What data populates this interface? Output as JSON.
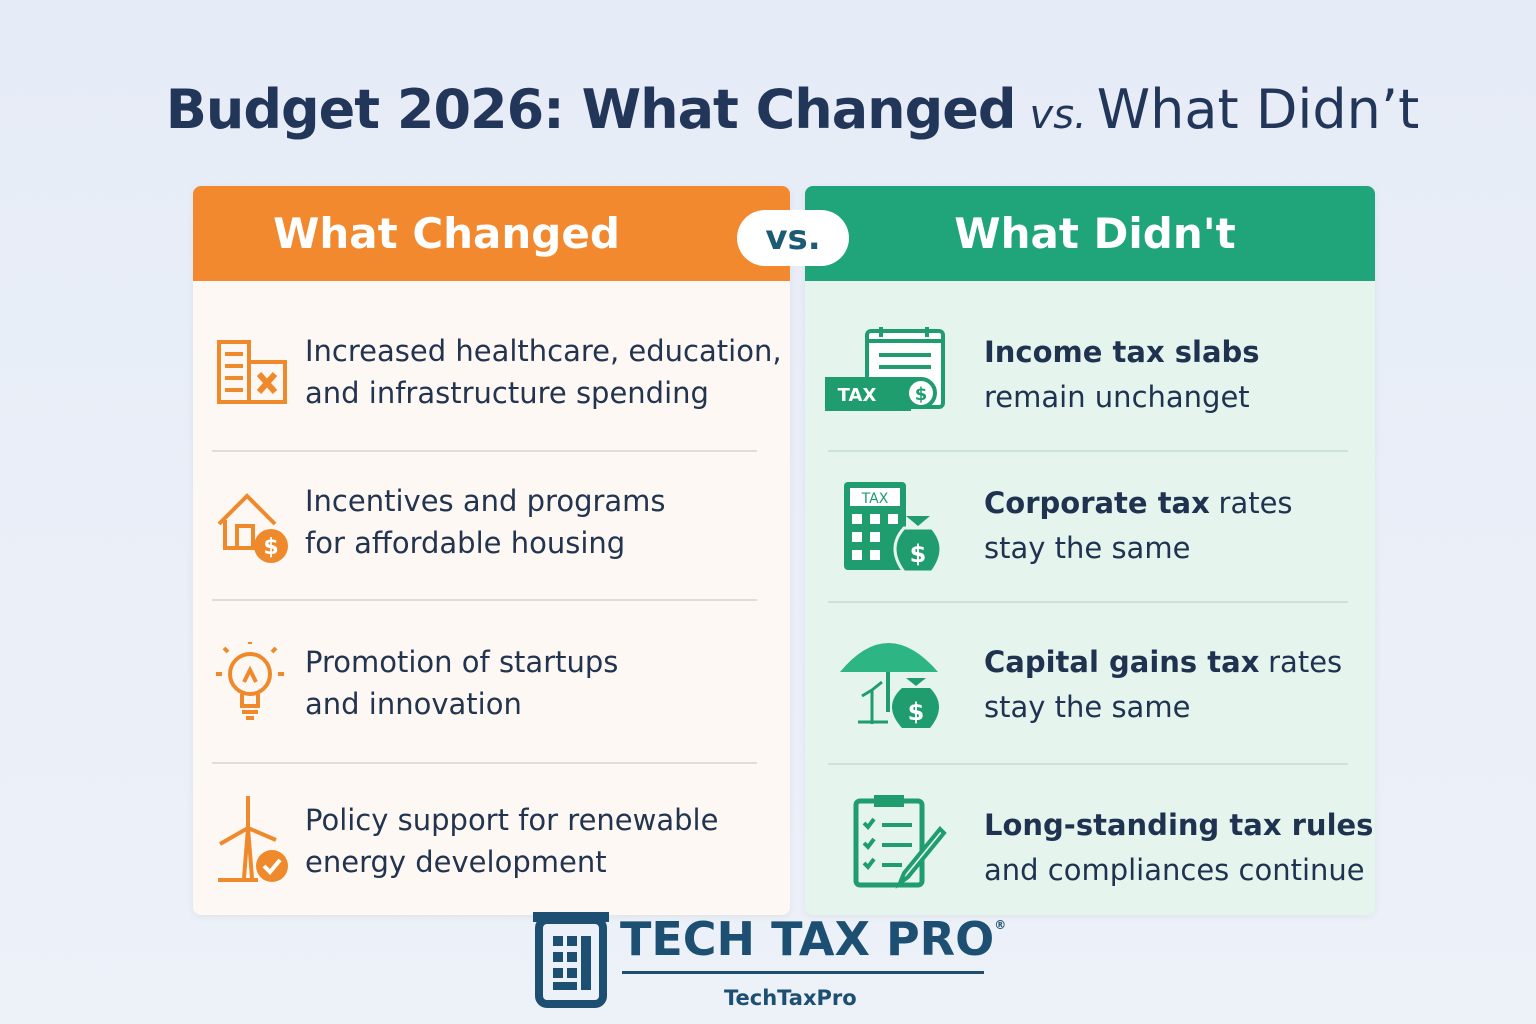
{
  "title": {
    "strong": "Budget 2026: What Changed",
    "vs": "vs.",
    "light": "What Didn’t"
  },
  "vs_badge": "vs.",
  "left": {
    "heading": "What Changed",
    "items": [
      {
        "lines": [
          "Increased healthcare, education,",
          "and infrastructure spending"
        ]
      },
      {
        "lines": [
          "Incentives and programs",
          "for affordable housing"
        ],
        "icon": [
          "$"
        ]
      },
      {
        "lines": [
          "Promotion of startups",
          "and innovation"
        ]
      },
      {
        "lines": [
          "Policy support for renewable",
          "energy development"
        ]
      }
    ]
  },
  "right": {
    "heading": "What Didn't",
    "items": [
      {
        "bold": "Income tax slabs",
        "line2": "remain unchanget",
        "icon": [
          "TAX",
          "$"
        ]
      },
      {
        "bold": "Corporate tax",
        "rest": "rates",
        "line2": "stay the same",
        "icon": [
          "TAX",
          "$"
        ]
      },
      {
        "bold": "Capital gains tax",
        "rest": "rates",
        "line2": "stay the same",
        "icon": [
          "$"
        ]
      },
      {
        "bold": "Long-standing tax rules",
        "line2": "and compliances continue"
      }
    ]
  },
  "logo": {
    "name": "TECH TAX PRO",
    "mark": "®",
    "handle": "TechTaxPro"
  }
}
